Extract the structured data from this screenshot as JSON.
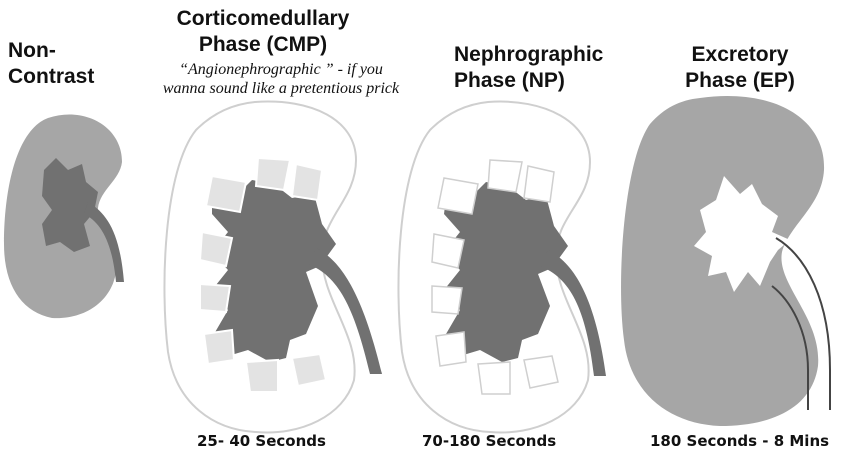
{
  "phases": [
    {
      "title_lines": [
        "Non-",
        "Contrast"
      ],
      "time": ""
    },
    {
      "title_lines": [
        "Corticomedullary",
        "Phase (CMP)"
      ],
      "time": "25- 40 Seconds"
    },
    {
      "title_lines": [
        "Nephrographic",
        "Phase (NP)"
      ],
      "time": "70-180 Seconds"
    },
    {
      "title_lines": [
        "Excretory",
        "Phase (EP)"
      ],
      "time": "180 Seconds - 8 Mins"
    }
  ],
  "quip_lines": [
    "“Angionephrographic ” - if you",
    "wanna sound like a pretentious prick"
  ],
  "colors": {
    "cortex": "#a6a6a6",
    "medulla_dark": "#717171",
    "medulla_light": "#e3e3e3",
    "outline": "#cfcfcf",
    "ureter_line": "#444444"
  }
}
